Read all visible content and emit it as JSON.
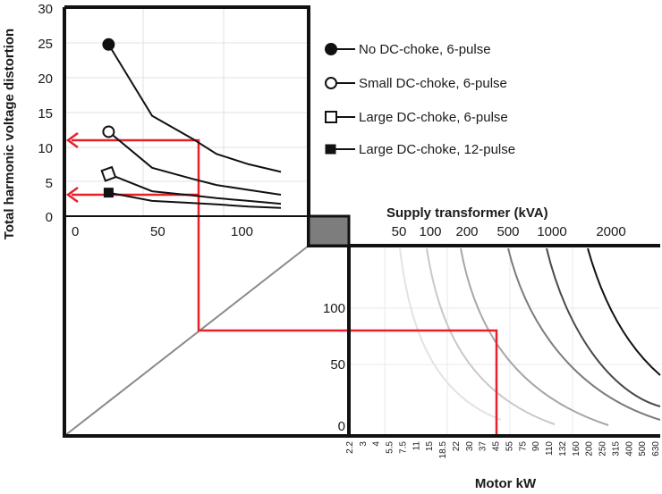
{
  "chart_data": [
    {
      "type": "line",
      "panel": "harmonic-distortion",
      "ylabel": "Total harmonic voltage distortion",
      "y_ticks": [
        "30",
        "25",
        "20",
        "15",
        "10",
        "5",
        "0"
      ],
      "x_ticks": [
        "0",
        "50",
        "100"
      ],
      "xlim": [
        0,
        135
      ],
      "ylim": [
        0,
        30
      ],
      "grid": true,
      "legend_position": "right",
      "series": [
        {
          "name": "No DC-choke, 6-pulse",
          "marker": "filled-circle",
          "x": [
            23,
            50,
            75,
            90,
            110,
            130
          ],
          "y": [
            24.8,
            14.5,
            11.2,
            9,
            7.5,
            6.4
          ]
        },
        {
          "name": "Small DC-choke, 6-pulse",
          "marker": "open-circle",
          "x": [
            23,
            50,
            75,
            90,
            110,
            130
          ],
          "y": [
            12.2,
            7,
            5.4,
            4.5,
            3.8,
            3.1
          ]
        },
        {
          "name": "Large DC-choke, 6-pulse",
          "marker": "open-square",
          "x": [
            23,
            50,
            75,
            90,
            110,
            130
          ],
          "y": [
            6.1,
            3.6,
            3,
            2.6,
            2.2,
            1.8
          ]
        },
        {
          "name": "Large DC-choke, 12-pulse",
          "marker": "filled-square",
          "x": [
            23,
            50,
            75,
            90,
            110,
            130
          ],
          "y": [
            3.4,
            2.2,
            1.9,
            1.7,
            1.4,
            1.2
          ]
        }
      ]
    },
    {
      "type": "line",
      "panel": "transformer-sizing",
      "title": "Supply transformer (kVA)",
      "xlabel": "Motor kW",
      "transformer_labels": [
        "50",
        "100",
        "200",
        "500",
        "1000",
        "2000"
      ],
      "transformer_colors": [
        "#e3e3e3",
        "#c8c8c8",
        "#a6a6a6",
        "#7c7c7c",
        "#4a4a4a",
        "#111111"
      ],
      "y_ticks": [
        "100",
        "50",
        "0"
      ],
      "ylim": [
        0,
        140
      ],
      "motor_kw": [
        "2.2",
        "3",
        "4",
        "5.5",
        "7.5",
        "11",
        "15",
        "18.5",
        "22",
        "30",
        "37",
        "45",
        "55",
        "75",
        "90",
        "110",
        "132",
        "160",
        "200",
        "250",
        "315",
        "400",
        "500",
        "630"
      ]
    }
  ]
}
